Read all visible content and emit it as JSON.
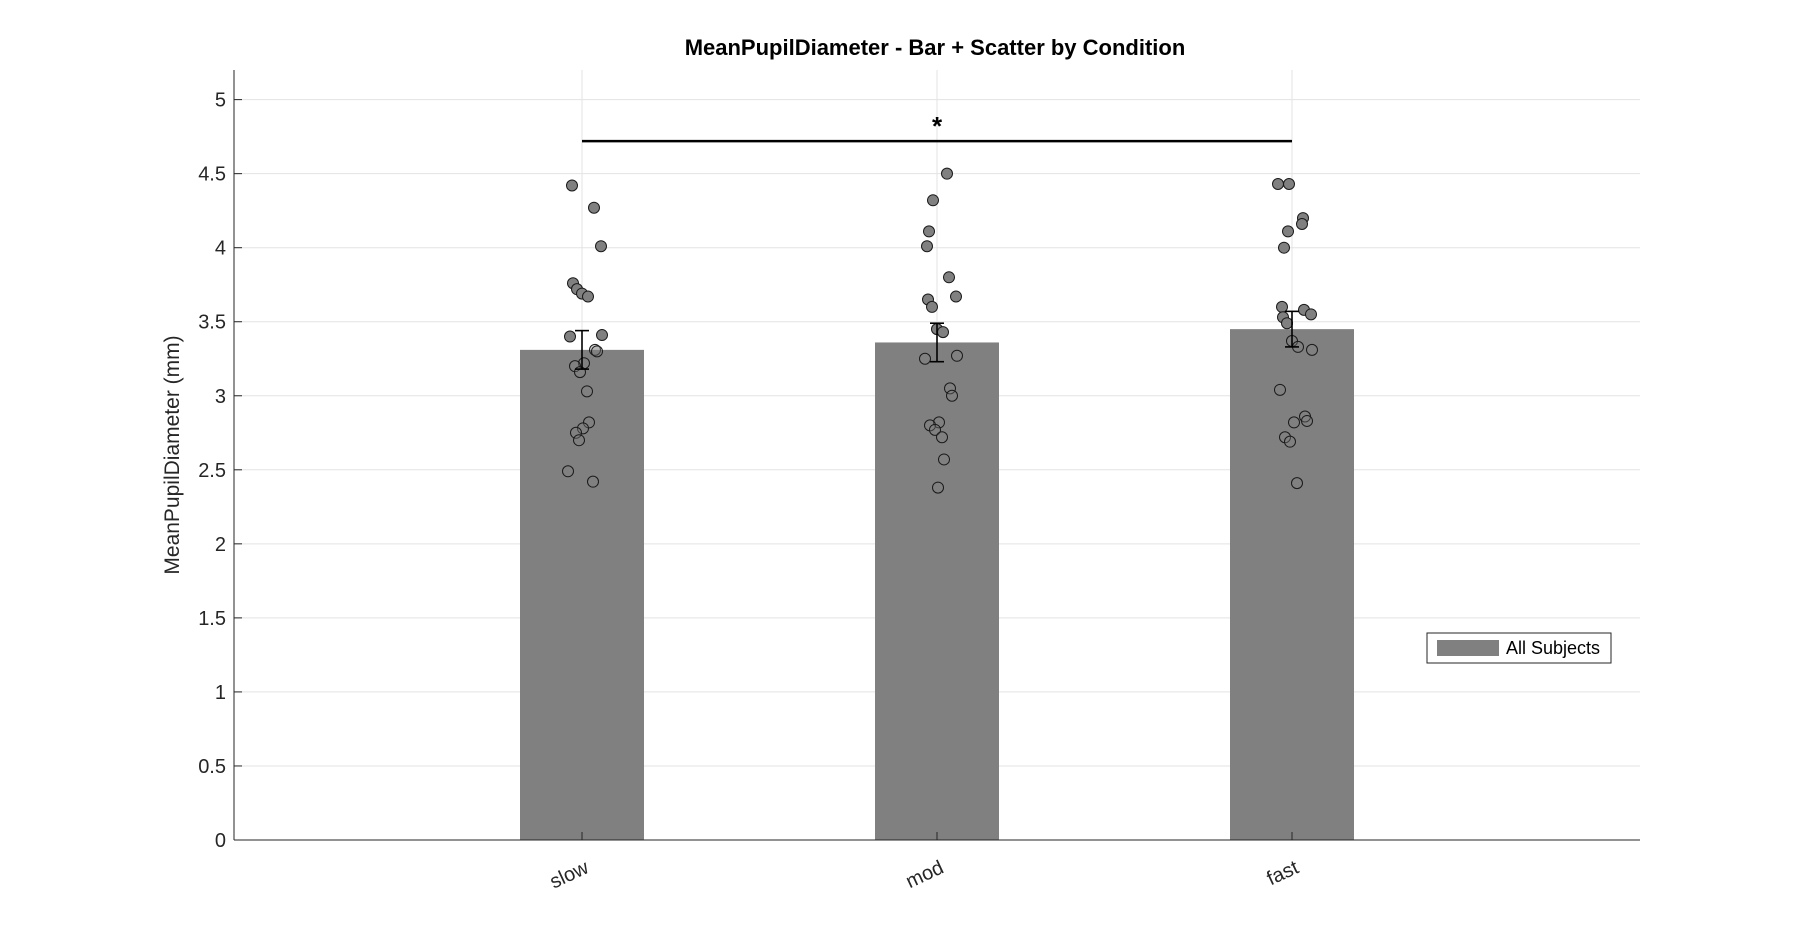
{
  "chart_data": {
    "type": "bar",
    "title": "MeanPupilDiameter - Bar + Scatter by Condition",
    "xlabel": "",
    "ylabel": "MeanPupilDiameter (mm)",
    "categories": [
      "slow",
      "mod",
      "fast"
    ],
    "ylim": [
      0,
      5.2
    ],
    "yticks": [
      0,
      0.5,
      1,
      1.5,
      2,
      2.5,
      3,
      3.5,
      4,
      4.5,
      5
    ],
    "ytick_labels": [
      "0",
      "0.5",
      "1",
      "1.5",
      "2",
      "2.5",
      "3",
      "3.5",
      "4",
      "4.5",
      "5"
    ],
    "grid": true,
    "legend_position": "right",
    "series": [
      {
        "name": "All Subjects",
        "values": [
          3.31,
          3.36,
          3.45
        ],
        "color": "#808080"
      }
    ],
    "error": [
      {
        "low": 3.18,
        "high": 3.44
      },
      {
        "low": 3.23,
        "high": 3.49
      },
      {
        "low": 3.33,
        "high": 3.57
      }
    ],
    "points": [
      [
        4.42,
        4.27,
        4.01,
        3.76,
        3.72,
        3.69,
        3.67,
        3.41,
        3.4,
        3.31,
        3.3,
        3.22,
        3.2,
        3.16,
        3.03,
        2.82,
        2.78,
        2.75,
        2.7,
        2.49,
        2.42
      ],
      [
        4.5,
        4.32,
        4.11,
        4.01,
        3.8,
        3.67,
        3.65,
        3.6,
        3.45,
        3.43,
        3.27,
        3.25,
        3.05,
        3.0,
        2.82,
        2.8,
        2.77,
        2.72,
        2.57,
        2.38
      ],
      [
        4.43,
        4.43,
        4.2,
        4.16,
        4.11,
        4.0,
        3.6,
        3.58,
        3.55,
        3.53,
        3.49,
        3.37,
        3.33,
        3.31,
        3.04,
        2.86,
        2.83,
        2.82,
        2.72,
        2.69,
        2.41
      ]
    ],
    "point_colors": {
      "above_bar": "#808080",
      "below_bar": "#808080"
    },
    "significance": {
      "from": "slow",
      "to": "fast",
      "level": 4.72,
      "label": "*"
    }
  }
}
